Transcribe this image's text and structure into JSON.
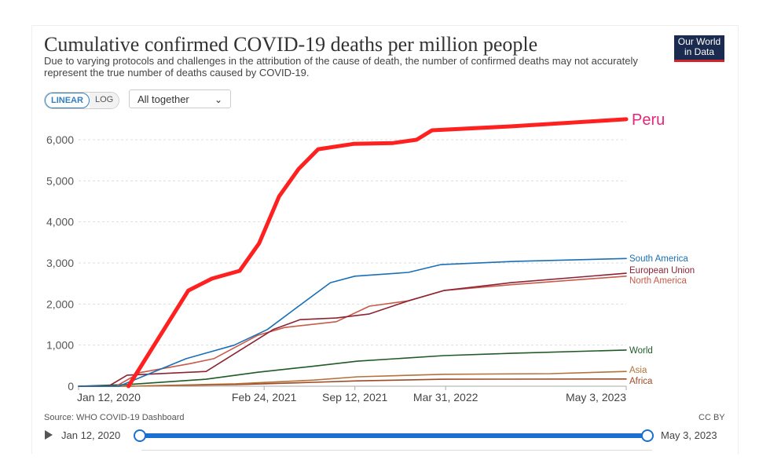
{
  "header": {
    "title": "Cumulative confirmed COVID-19 deaths per million people",
    "subtitle": "Due to varying protocols and challenges in the attribution of the cause of death, the number of confirmed deaths may not accurately represent the true number of deaths caused by COVID-19.",
    "logo": "Our World in Data"
  },
  "controls": {
    "linear": "LINEAR",
    "log": "LOG",
    "selected_scale": "LINEAR",
    "dropdown": "All together"
  },
  "footer": {
    "source": "Source: WHO COVID-19 Dashboard",
    "license": "CC BY"
  },
  "timeline": {
    "start": "Jan 12, 2020",
    "end": "May 3, 2023",
    "play_icon": "play-icon"
  },
  "chart_data": {
    "type": "line",
    "title": "Cumulative confirmed COVID-19 deaths per million people",
    "xlim": [
      "2020-01-12",
      "2023-05-03"
    ],
    "ylim": [
      0,
      6500
    ],
    "grid": true,
    "x_ticks": [
      {
        "date": "2020-01-12",
        "label": "Jan 12, 2020"
      },
      {
        "date": "2021-02-24",
        "label": "Feb 24, 2021"
      },
      {
        "date": "2021-09-12",
        "label": "Sep 12, 2021"
      },
      {
        "date": "2022-03-31",
        "label": "Mar 31, 2022"
      },
      {
        "date": "2023-05-03",
        "label": "May 3, 2023"
      }
    ],
    "y_ticks": [
      {
        "value": 0,
        "label": "0"
      },
      {
        "value": 1000,
        "label": "1,000"
      },
      {
        "value": 2000,
        "label": "2,000"
      },
      {
        "value": 3000,
        "label": "3,000"
      },
      {
        "value": 4000,
        "label": "4,000"
      },
      {
        "value": 5000,
        "label": "5,000"
      },
      {
        "value": 6000,
        "label": "6,000"
      }
    ],
    "series": [
      {
        "name": "Peru",
        "color": "#ff2020",
        "highlight": true,
        "label_color": "#e0287a",
        "points": [
          [
            "2020-05-01",
            0
          ],
          [
            "2020-09-10",
            2330
          ],
          [
            "2020-11-01",
            2620
          ],
          [
            "2021-01-01",
            2810
          ],
          [
            "2021-02-13",
            3480
          ],
          [
            "2021-03-29",
            4620
          ],
          [
            "2021-05-11",
            5290
          ],
          [
            "2021-06-23",
            5770
          ],
          [
            "2021-09-09",
            5900
          ],
          [
            "2021-12-05",
            5920
          ],
          [
            "2022-01-26",
            6000
          ],
          [
            "2022-03-01",
            6230
          ],
          [
            "2022-08-21",
            6325
          ],
          [
            "2023-05-03",
            6500
          ]
        ]
      },
      {
        "name": "South America",
        "color": "#1a6fb5",
        "points": [
          [
            "2020-01-12",
            0
          ],
          [
            "2020-04-10",
            0
          ],
          [
            "2020-09-05",
            670
          ],
          [
            "2020-12-20",
            1000
          ],
          [
            "2021-03-03",
            1380
          ],
          [
            "2021-05-11",
            1950
          ],
          [
            "2021-07-20",
            2520
          ],
          [
            "2021-09-12",
            2680
          ],
          [
            "2022-01-08",
            2770
          ],
          [
            "2022-03-20",
            2960
          ],
          [
            "2022-09-01",
            3040
          ],
          [
            "2023-05-03",
            3110
          ]
        ]
      },
      {
        "name": "European Union",
        "color": "#8c2335",
        "points": [
          [
            "2020-01-12",
            0
          ],
          [
            "2020-03-18",
            0
          ],
          [
            "2020-04-28",
            270
          ],
          [
            "2020-10-19",
            360
          ],
          [
            "2021-03-16",
            1380
          ],
          [
            "2021-05-14",
            1620
          ],
          [
            "2021-08-02",
            1660
          ],
          [
            "2021-10-14",
            1760
          ],
          [
            "2022-01-08",
            2080
          ],
          [
            "2022-03-27",
            2330
          ],
          [
            "2022-08-22",
            2520
          ],
          [
            "2023-05-03",
            2750
          ]
        ]
      },
      {
        "name": "North America",
        "color": "#c85a4a",
        "points": [
          [
            "2020-01-12",
            0
          ],
          [
            "2020-04-04",
            0
          ],
          [
            "2020-05-26",
            330
          ],
          [
            "2020-09-14",
            550
          ],
          [
            "2020-11-05",
            670
          ],
          [
            "2021-02-10",
            1240
          ],
          [
            "2021-04-10",
            1430
          ],
          [
            "2021-08-02",
            1570
          ],
          [
            "2021-10-14",
            1950
          ],
          [
            "2022-01-08",
            2080
          ],
          [
            "2022-03-27",
            2330
          ],
          [
            "2022-08-22",
            2470
          ],
          [
            "2023-05-03",
            2680
          ]
        ]
      },
      {
        "name": "World",
        "color": "#1f5a27",
        "points": [
          [
            "2020-01-12",
            0
          ],
          [
            "2020-04-28",
            40
          ],
          [
            "2020-10-19",
            170
          ],
          [
            "2021-02-10",
            340
          ],
          [
            "2021-06-06",
            480
          ],
          [
            "2021-09-18",
            610
          ],
          [
            "2022-03-27",
            745
          ],
          [
            "2022-08-22",
            800
          ],
          [
            "2023-05-03",
            880
          ]
        ]
      },
      {
        "name": "Asia",
        "color": "#b5713a",
        "points": [
          [
            "2020-01-12",
            0
          ],
          [
            "2020-04-28",
            0
          ],
          [
            "2020-12-23",
            60
          ],
          [
            "2021-06-14",
            150
          ],
          [
            "2021-09-18",
            230
          ],
          [
            "2022-03-27",
            290
          ],
          [
            "2022-11-17",
            305
          ],
          [
            "2023-05-03",
            360
          ]
        ]
      },
      {
        "name": "Africa",
        "color": "#9c4a28",
        "points": [
          [
            "2020-01-12",
            0
          ],
          [
            "2020-04-28",
            0
          ],
          [
            "2020-12-23",
            40
          ],
          [
            "2021-06-14",
            95
          ],
          [
            "2021-09-18",
            130
          ],
          [
            "2022-03-27",
            170
          ],
          [
            "2023-05-03",
            175
          ]
        ]
      }
    ]
  }
}
